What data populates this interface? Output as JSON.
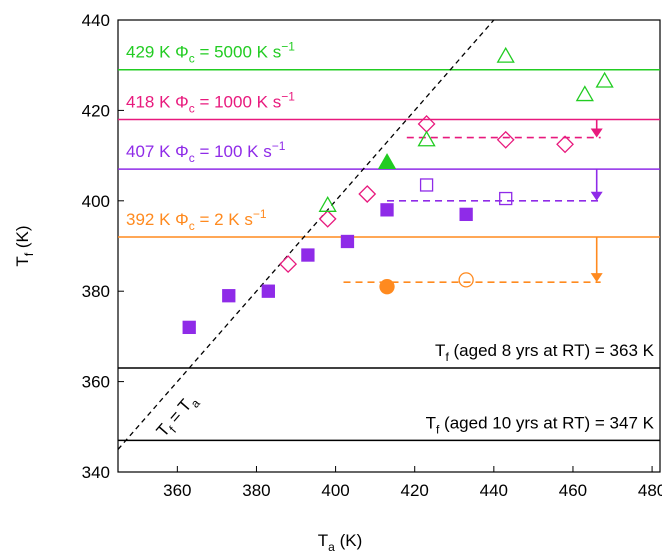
{
  "chart_data": {
    "type": "scatter",
    "x_label": [
      {
        "text": "T"
      },
      {
        "text": "a",
        "pos": "sub"
      },
      {
        "text": " (K)"
      }
    ],
    "y_label": [
      {
        "text": "T"
      },
      {
        "text": "f",
        "pos": "sub"
      },
      {
        "text": " (K)"
      }
    ],
    "xlim": [
      345,
      482
    ],
    "ylim": [
      340,
      440
    ],
    "xticks": [
      360,
      380,
      400,
      420,
      440,
      460,
      480
    ],
    "yticks": [
      340,
      360,
      380,
      400,
      420,
      440
    ],
    "reference_lines": [
      {
        "value": 429,
        "color": "#22cc22",
        "align": "left",
        "label": [
          {
            "text": "429 K Φ"
          },
          {
            "text": "c",
            "pos": "sub"
          },
          {
            "text": " = 5000 K s"
          },
          {
            "text": "−1",
            "pos": "sup"
          }
        ]
      },
      {
        "value": 418,
        "color": "#e8197d",
        "align": "left",
        "label": [
          {
            "text": "418 K Φ"
          },
          {
            "text": "c",
            "pos": "sub"
          },
          {
            "text": " = 1000 K s"
          },
          {
            "text": "−1",
            "pos": "sup"
          }
        ]
      },
      {
        "value": 407,
        "color": "#8f2be8",
        "align": "left",
        "label": [
          {
            "text": "407 K Φ"
          },
          {
            "text": "c",
            "pos": "sub"
          },
          {
            "text": " = 100 K s"
          },
          {
            "text": "−1",
            "pos": "sup"
          }
        ]
      },
      {
        "value": 392,
        "color": "#ff8a1f",
        "align": "left",
        "label": [
          {
            "text": "392 K Φ"
          },
          {
            "text": "c",
            "pos": "sub"
          },
          {
            "text": " = 2 K s"
          },
          {
            "text": "−1",
            "pos": "sup"
          }
        ]
      },
      {
        "value": 363,
        "color": "#000000",
        "align": "right",
        "label": [
          {
            "text": "T"
          },
          {
            "text": "f",
            "pos": "sub"
          },
          {
            "text": " (aged 8 yrs at RT) = 363 K"
          }
        ]
      },
      {
        "value": 347,
        "color": "#000000",
        "align": "right",
        "label": [
          {
            "text": "T"
          },
          {
            "text": "f",
            "pos": "sub"
          },
          {
            "text": " (aged 10 yrs at RT) = 347 K"
          }
        ]
      }
    ],
    "identity_line": {
      "x": [
        345,
        440
      ],
      "values": [
        345,
        440
      ],
      "label": [
        {
          "text": "T"
        },
        {
          "text": "f",
          "pos": "sub"
        },
        {
          "text": " = T"
        },
        {
          "text": "a",
          "pos": "sub"
        }
      ]
    },
    "series": [
      {
        "color": "#8f2be8",
        "marker": "square",
        "filled": true,
        "x": [
          363,
          373,
          383,
          393,
          403,
          413,
          433
        ],
        "values": [
          372,
          379,
          380,
          388,
          391,
          398,
          397
        ]
      },
      {
        "color": "#8f2be8",
        "marker": "square",
        "filled": false,
        "x": [
          423,
          443
        ],
        "values": [
          403.5,
          400.5
        ]
      },
      {
        "color": "#e8197d",
        "marker": "diamond",
        "filled": false,
        "x": [
          388,
          398,
          408,
          423,
          443,
          458
        ],
        "values": [
          386,
          396,
          401.5,
          417,
          413.5,
          412.5
        ]
      },
      {
        "color": "#22cc22",
        "marker": "triangle",
        "filled": true,
        "x": [
          413
        ],
        "values": [
          408.5
        ]
      },
      {
        "color": "#22cc22",
        "marker": "triangle",
        "filled": false,
        "x": [
          398,
          423,
          443,
          463,
          468
        ],
        "values": [
          399,
          413.5,
          432,
          423.5,
          426.5
        ]
      },
      {
        "color": "#ff8a1f",
        "marker": "circle",
        "filled": true,
        "x": [
          413
        ],
        "values": [
          381
        ]
      },
      {
        "color": "#ff8a1f",
        "marker": "circle",
        "filled": false,
        "x": [
          433
        ],
        "values": [
          382.5
        ]
      }
    ],
    "dashed_lines": [
      {
        "color": "#e8197d",
        "x": [
          418,
          467
        ],
        "value": 414
      },
      {
        "color": "#8f2be8",
        "x": [
          413,
          467
        ],
        "value": 400
      },
      {
        "color": "#ff8a1f",
        "x": [
          402,
          467
        ],
        "value": 382
      }
    ],
    "arrows": [
      {
        "color": "#e8197d",
        "x": 466,
        "from": 418,
        "to": 414
      },
      {
        "color": "#8f2be8",
        "x": 466,
        "from": 407,
        "to": 400
      },
      {
        "color": "#ff8a1f",
        "x": 466,
        "from": 392,
        "to": 382
      }
    ]
  }
}
